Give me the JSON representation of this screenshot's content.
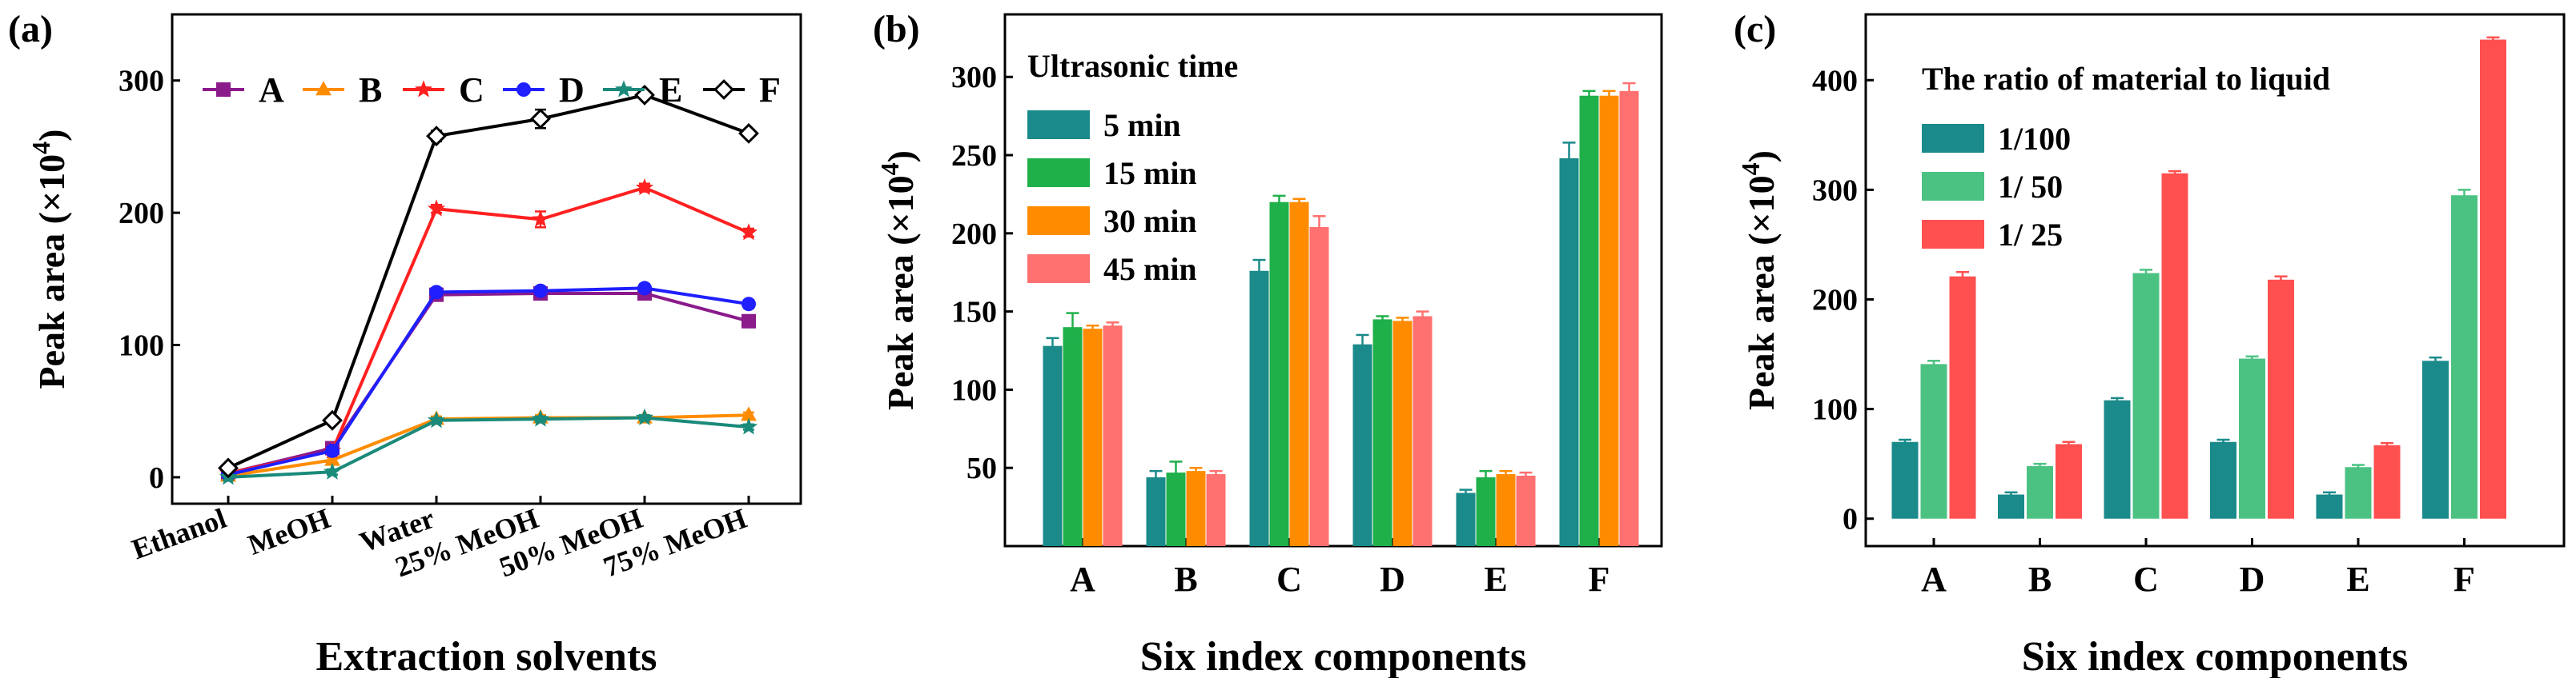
{
  "chart_data": [
    {
      "panel": "(a)",
      "type": "line",
      "xlabel": "Extraction solvents",
      "ylabel_main": "Peak area (×10",
      "ylabel_exp": "4",
      "ylabel_close": ")",
      "categories": [
        "Ethanol",
        "MeOH",
        "Water",
        "25% MeOH",
        "50% MeOH",
        "75% MeOH"
      ],
      "ylim": [
        -20,
        350
      ],
      "yticks": [
        0,
        100,
        200,
        300
      ],
      "legend_position": "top",
      "series": [
        {
          "name": "A",
          "color": "#8b1a8b",
          "marker": "square",
          "values": [
            3,
            22,
            138,
            139,
            139,
            118
          ],
          "errors": [
            3,
            3,
            3,
            3,
            3,
            3
          ]
        },
        {
          "name": "B",
          "color": "#ff8c00",
          "marker": "triangle",
          "values": [
            1,
            13,
            44,
            45,
            45,
            47
          ],
          "errors": [
            2,
            2,
            2,
            2,
            2,
            2
          ]
        },
        {
          "name": "C",
          "color": "#ff2020",
          "marker": "star",
          "values": [
            3,
            20,
            203,
            195,
            219,
            185
          ],
          "errors": [
            3,
            3,
            3,
            6,
            3,
            3
          ]
        },
        {
          "name": "D",
          "color": "#1f1fff",
          "marker": "circle",
          "values": [
            2,
            20,
            140,
            141,
            143,
            131
          ],
          "errors": [
            2,
            2,
            3,
            3,
            3,
            3
          ]
        },
        {
          "name": "E",
          "color": "#1a8a7a",
          "marker": "star",
          "values": [
            0,
            4,
            43,
            44,
            45,
            38
          ],
          "errors": [
            2,
            2,
            2,
            2,
            2,
            2
          ]
        },
        {
          "name": "F",
          "color": "#000000",
          "marker": "diamond",
          "values": [
            7,
            43,
            258,
            271,
            289,
            260
          ],
          "errors": [
            3,
            3,
            4,
            7,
            3,
            3
          ]
        }
      ]
    },
    {
      "panel": "(b)",
      "type": "bar",
      "xlabel": "Six index components",
      "ylabel_main": "Peak area (×10",
      "ylabel_exp": "4",
      "ylabel_close": ")",
      "categories": [
        "A",
        "B",
        "C",
        "D",
        "E",
        "F"
      ],
      "ylim": [
        0,
        340
      ],
      "yticks": [
        50,
        100,
        150,
        200,
        250,
        300
      ],
      "legend_title": "Ultrasonic time",
      "legend_position": "top-left",
      "series": [
        {
          "name": "5 min",
          "color": "#1a8a8a",
          "values": [
            128,
            44,
            176,
            129,
            34,
            248
          ],
          "errors": [
            5,
            4,
            7,
            6,
            2,
            10
          ]
        },
        {
          "name": "15 min",
          "color": "#1fb04a",
          "values": [
            140,
            47,
            220,
            145,
            44,
            288
          ],
          "errors": [
            9,
            7,
            4,
            2,
            4,
            3
          ]
        },
        {
          "name": "30 min",
          "color": "#ff8c00",
          "values": [
            139,
            48,
            220,
            144,
            46,
            288
          ],
          "errors": [
            2,
            2,
            2,
            2,
            2,
            3
          ]
        },
        {
          "name": "45 min",
          "color": "#ff7070",
          "values": [
            141,
            46,
            204,
            147,
            45,
            291
          ],
          "errors": [
            2,
            2,
            7,
            3,
            2,
            5
          ]
        }
      ]
    },
    {
      "panel": "(c)",
      "type": "bar",
      "xlabel": "Six index components",
      "ylabel_main": "Peak area (×10",
      "ylabel_exp": "4",
      "ylabel_close": ")",
      "categories": [
        "A",
        "B",
        "C",
        "D",
        "E",
        "F"
      ],
      "ylim": [
        -25,
        460
      ],
      "yticks": [
        0,
        100,
        200,
        300,
        400
      ],
      "legend_title": "The ratio of material to liquid",
      "legend_position": "top-left",
      "series": [
        {
          "name": "1/100",
          "color": "#1a8a8a",
          "values": [
            70,
            22,
            108,
            70,
            22,
            144
          ],
          "errors": [
            2,
            2,
            2,
            2,
            2,
            3
          ]
        },
        {
          "name": "1/ 50",
          "color": "#4cc282",
          "values": [
            141,
            48,
            224,
            146,
            47,
            295
          ],
          "errors": [
            3,
            2,
            3,
            2,
            2,
            5
          ]
        },
        {
          "name": "1/ 25",
          "color": "#ff5050",
          "values": [
            221,
            68,
            315,
            218,
            67,
            437
          ],
          "errors": [
            4,
            2,
            2,
            3,
            2,
            2
          ]
        }
      ]
    }
  ]
}
